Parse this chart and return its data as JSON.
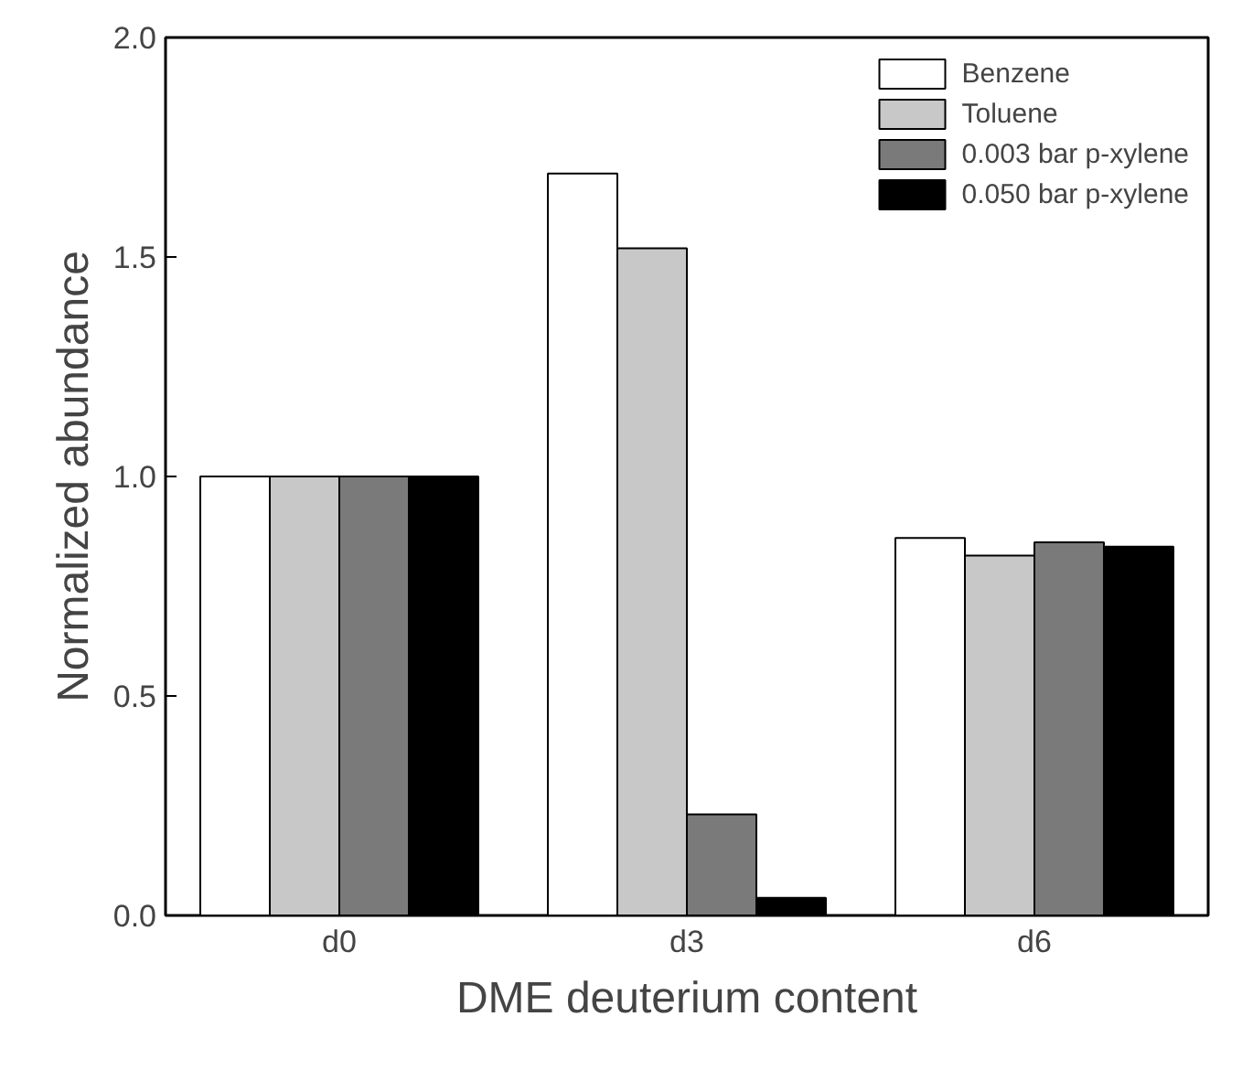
{
  "chart_data": {
    "type": "bar",
    "xlabel": "DME deuterium content",
    "ylabel": "Normalized abundance",
    "categories": [
      "d0",
      "d3",
      "d6"
    ],
    "series": [
      {
        "name": "Benzene",
        "color": "#ffffff",
        "values": [
          1.0,
          1.69,
          0.86
        ]
      },
      {
        "name": "Toluene",
        "color": "#c8c8c8",
        "values": [
          1.0,
          1.52,
          0.82
        ]
      },
      {
        "name": "0.003 bar p-xylene",
        "color": "#7a7a7a",
        "values": [
          1.0,
          0.23,
          0.85
        ]
      },
      {
        "name": "0.050 bar p-xylene",
        "color": "#000000",
        "values": [
          1.0,
          0.04,
          0.84
        ]
      }
    ],
    "ylim": [
      0,
      2.0
    ],
    "yticks": [
      {
        "value": 0,
        "label": "0.0"
      },
      {
        "value": 0.5,
        "label": "0.5"
      },
      {
        "value": 1.0,
        "label": "1.0"
      },
      {
        "value": 1.5,
        "label": "1.5"
      },
      {
        "value": 2.0,
        "label": "2.0"
      }
    ],
    "grid": false,
    "legend": "top right"
  }
}
